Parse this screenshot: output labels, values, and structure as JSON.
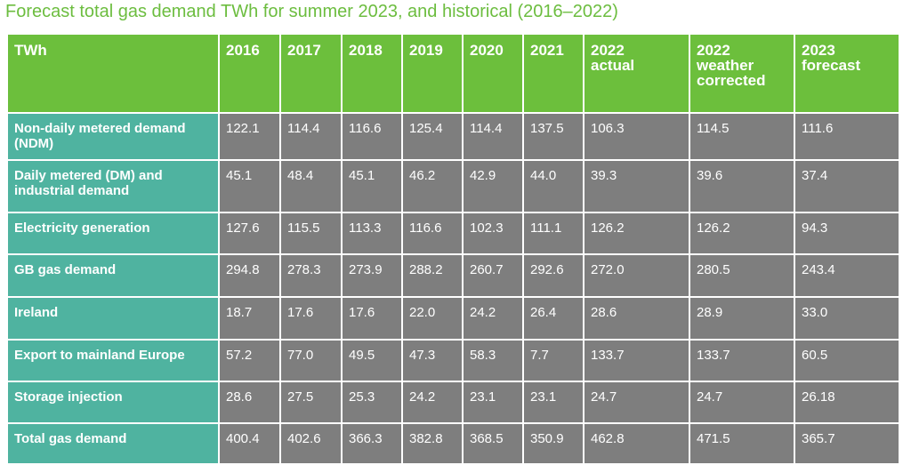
{
  "title": "Forecast total gas demand TWh for summer 2023, and historical (2016–2022)",
  "table": {
    "header": [
      "TWh",
      "2016",
      "2017",
      "2018",
      "2019",
      "2020",
      "2021",
      "2022 actual",
      "2022 weather corrected",
      "2023 forecast"
    ],
    "rows": [
      [
        "Non-daily metered demand (NDM)",
        "122.1",
        "114.4",
        "116.6",
        "125.4",
        "114.4",
        "137.5",
        "106.3",
        "114.5",
        "111.6"
      ],
      [
        "Daily metered (DM) and industrial demand",
        "45.1",
        "48.4",
        "45.1",
        "46.2",
        "42.9",
        "44.0",
        "39.3",
        "39.6",
        "37.4"
      ],
      [
        "Electricity generation",
        "127.6",
        "115.5",
        "113.3",
        "116.6",
        "102.3",
        "111.1",
        "126.2",
        "126.2",
        "94.3"
      ],
      [
        "GB gas demand",
        "294.8",
        "278.3",
        "273.9",
        "288.2",
        "260.7",
        "292.6",
        "272.0",
        "280.5",
        "243.4"
      ],
      [
        "Ireland",
        "18.7",
        "17.6",
        "17.6",
        "22.0",
        "24.2",
        "26.4",
        "28.6",
        "28.9",
        "33.0"
      ],
      [
        "Export to mainland Europe",
        "57.2",
        "77.0",
        "49.5",
        "47.3",
        "58.3",
        "7.7",
        "133.7",
        "133.7",
        "60.5"
      ],
      [
        "Storage injection",
        "28.6",
        "27.5",
        "25.3",
        "24.2",
        "23.1",
        "23.1",
        "24.7",
        "24.7",
        "26.18"
      ],
      [
        "Total gas demand",
        "400.4",
        "402.6",
        "366.3",
        "382.8",
        "368.5",
        "350.9",
        "462.8",
        "471.5",
        "365.7"
      ]
    ]
  }
}
